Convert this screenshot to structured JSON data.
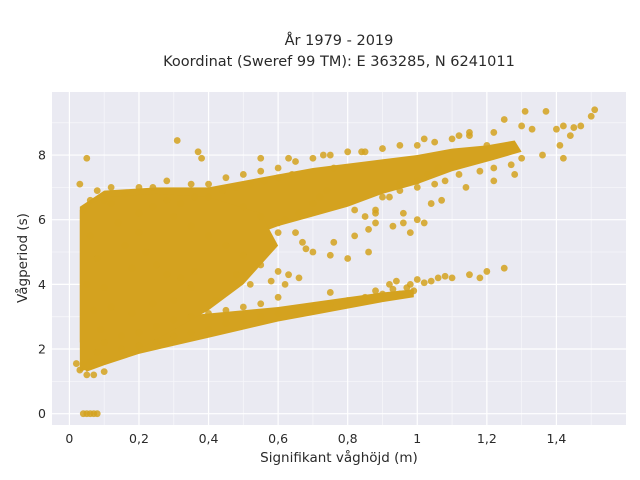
{
  "chart_data": {
    "type": "scatter",
    "title": "År 1979 - 2019",
    "subtitle": "Koordinat (Sweref 99 TM): E 363285, N 6241011",
    "xlabel": "Signifikant våghöjd (m)",
    "ylabel": "Vågperiod (s)",
    "xlim": [
      -0.05,
      1.6
    ],
    "ylim": [
      -0.35,
      9.95
    ],
    "x_ticks": [
      "0",
      "0,2",
      "0,4",
      "0,6",
      "0,8",
      "1",
      "1,2",
      "1,4"
    ],
    "x_tick_values": [
      0,
      0.2,
      0.4,
      0.6,
      0.8,
      1.0,
      1.2,
      1.4
    ],
    "y_ticks": [
      "0",
      "2",
      "4",
      "6",
      "8"
    ],
    "y_tick_values": [
      0,
      2,
      4,
      6,
      8
    ],
    "grid": true,
    "plot_background": "#eaeaf2",
    "marker_color": "#d4a21f",
    "series": [
      {
        "points": [
          [
            0.04,
            0.0
          ],
          [
            0.05,
            0.0
          ],
          [
            0.06,
            0.0
          ],
          [
            0.07,
            0.0
          ],
          [
            0.08,
            0.0
          ],
          [
            0.02,
            1.55
          ],
          [
            0.03,
            1.35
          ],
          [
            0.05,
            1.2
          ],
          [
            0.07,
            1.2
          ],
          [
            0.1,
            1.3
          ],
          [
            0.05,
            7.9
          ],
          [
            0.03,
            7.1
          ],
          [
            0.06,
            6.6
          ],
          [
            0.08,
            6.9
          ],
          [
            0.1,
            6.6
          ],
          [
            0.12,
            7.0
          ],
          [
            0.16,
            6.8
          ],
          [
            0.2,
            7.0
          ],
          [
            0.24,
            7.0
          ],
          [
            0.28,
            7.2
          ],
          [
            0.31,
            8.45
          ],
          [
            0.35,
            7.1
          ],
          [
            0.4,
            7.1
          ],
          [
            0.45,
            7.3
          ],
          [
            0.5,
            7.4
          ],
          [
            0.55,
            7.5
          ],
          [
            0.6,
            7.6
          ],
          [
            0.65,
            7.8
          ],
          [
            0.7,
            7.9
          ],
          [
            0.75,
            8.0
          ],
          [
            0.8,
            8.1
          ],
          [
            0.85,
            8.1
          ],
          [
            0.9,
            8.2
          ],
          [
            0.95,
            8.3
          ],
          [
            1.0,
            8.3
          ],
          [
            1.05,
            8.4
          ],
          [
            1.1,
            8.5
          ],
          [
            1.15,
            8.6
          ],
          [
            0.73,
            8.0
          ],
          [
            0.76,
            7.6
          ],
          [
            0.63,
            7.9
          ],
          [
            0.55,
            7.9
          ],
          [
            0.37,
            8.1
          ],
          [
            0.38,
            7.9
          ],
          [
            0.84,
            8.1
          ],
          [
            1.02,
            8.5
          ],
          [
            1.12,
            8.6
          ],
          [
            1.15,
            8.7
          ],
          [
            1.22,
            8.7
          ],
          [
            1.25,
            9.1
          ],
          [
            1.3,
            8.9
          ],
          [
            1.33,
            8.8
          ],
          [
            1.4,
            8.8
          ],
          [
            1.42,
            8.9
          ],
          [
            1.44,
            8.6
          ],
          [
            1.45,
            8.85
          ],
          [
            1.47,
            8.9
          ],
          [
            1.5,
            9.2
          ],
          [
            1.51,
            9.4
          ],
          [
            1.31,
            9.35
          ],
          [
            1.37,
            9.35
          ],
          [
            1.41,
            8.3
          ],
          [
            1.36,
            8.0
          ],
          [
            1.42,
            7.9
          ],
          [
            1.2,
            8.3
          ],
          [
            1.25,
            8.1
          ],
          [
            1.3,
            7.9
          ],
          [
            1.27,
            7.7
          ],
          [
            1.22,
            7.6
          ],
          [
            1.18,
            7.5
          ],
          [
            1.12,
            7.4
          ],
          [
            1.08,
            7.2
          ],
          [
            1.05,
            7.1
          ],
          [
            1.0,
            7.0
          ],
          [
            0.95,
            7.1
          ],
          [
            0.92,
            6.7
          ],
          [
            0.88,
            6.3
          ],
          [
            0.85,
            6.1
          ],
          [
            0.96,
            6.2
          ],
          [
            0.98,
            5.6
          ],
          [
            1.02,
            5.9
          ],
          [
            1.07,
            6.6
          ],
          [
            1.14,
            7.0
          ],
          [
            1.22,
            7.2
          ],
          [
            1.28,
            7.4
          ],
          [
            0.5,
            6.4
          ],
          [
            0.55,
            6.1
          ],
          [
            0.6,
            5.9
          ],
          [
            0.65,
            5.6
          ],
          [
            0.67,
            5.3
          ],
          [
            0.68,
            5.1
          ],
          [
            0.7,
            5.0
          ],
          [
            0.75,
            4.9
          ],
          [
            0.8,
            4.8
          ],
          [
            0.86,
            5.0
          ],
          [
            0.76,
            5.3
          ],
          [
            0.82,
            5.5
          ],
          [
            0.88,
            5.9
          ],
          [
            0.82,
            6.3
          ],
          [
            0.3,
            6.1
          ],
          [
            0.35,
            5.8
          ],
          [
            0.4,
            5.5
          ],
          [
            0.45,
            5.2
          ],
          [
            0.5,
            4.9
          ],
          [
            0.55,
            4.6
          ],
          [
            0.6,
            4.4
          ],
          [
            0.48,
            4.3
          ],
          [
            0.52,
            4.0
          ],
          [
            0.58,
            4.1
          ],
          [
            0.62,
            4.0
          ],
          [
            0.66,
            4.2
          ],
          [
            0.63,
            4.3
          ],
          [
            0.2,
            5.6
          ],
          [
            0.22,
            5.0
          ],
          [
            0.25,
            4.6
          ],
          [
            0.28,
            4.3
          ],
          [
            0.32,
            4.2
          ],
          [
            0.36,
            4.4
          ],
          [
            0.04,
            6.3
          ],
          [
            0.06,
            5.5
          ],
          [
            0.08,
            4.8
          ],
          [
            0.05,
            4.0
          ],
          [
            0.07,
            3.2
          ],
          [
            0.09,
            2.6
          ],
          [
            0.12,
            6.5
          ],
          [
            0.14,
            5.9
          ],
          [
            0.16,
            5.2
          ],
          [
            0.18,
            4.5
          ],
          [
            0.1,
            3.9
          ],
          [
            0.12,
            3.3
          ],
          [
            0.15,
            2.0
          ],
          [
            0.2,
            2.1
          ],
          [
            0.25,
            2.2
          ],
          [
            0.3,
            2.4
          ],
          [
            0.35,
            2.5
          ],
          [
            0.4,
            2.6
          ],
          [
            0.45,
            2.8
          ],
          [
            0.5,
            2.9
          ],
          [
            0.55,
            3.0
          ],
          [
            0.6,
            3.1
          ],
          [
            0.65,
            3.2
          ],
          [
            0.7,
            3.3
          ],
          [
            0.75,
            3.4
          ],
          [
            0.8,
            3.5
          ],
          [
            0.85,
            3.6
          ],
          [
            0.9,
            3.7
          ],
          [
            0.95,
            3.7
          ],
          [
            0.99,
            3.8
          ],
          [
            0.88,
            3.8
          ],
          [
            0.75,
            3.75
          ],
          [
            0.98,
            4.0
          ],
          [
            1.0,
            4.15
          ],
          [
            1.02,
            4.05
          ],
          [
            1.04,
            4.1
          ],
          [
            1.06,
            4.2
          ],
          [
            1.08,
            4.25
          ],
          [
            1.1,
            4.2
          ],
          [
            1.15,
            4.3
          ],
          [
            1.2,
            4.4
          ],
          [
            1.25,
            4.5
          ],
          [
            1.18,
            4.2
          ],
          [
            0.6,
            3.6
          ],
          [
            0.55,
            3.4
          ],
          [
            0.5,
            3.3
          ],
          [
            0.45,
            3.2
          ],
          [
            0.4,
            3.1
          ],
          [
            0.35,
            3.0
          ],
          [
            0.3,
            2.9
          ],
          [
            0.25,
            2.7
          ],
          [
            0.2,
            2.5
          ],
          [
            0.15,
            2.4
          ],
          [
            0.1,
            2.2
          ],
          [
            0.08,
            1.9
          ],
          [
            0.06,
            1.6
          ],
          [
            0.04,
            1.5
          ],
          [
            0.3,
            3.5
          ],
          [
            0.35,
            3.9
          ],
          [
            0.42,
            3.5
          ],
          [
            0.24,
            3.4
          ],
          [
            0.18,
            3.1
          ],
          [
            0.6,
            5.6
          ],
          [
            0.62,
            6.0
          ],
          [
            0.66,
            6.2
          ],
          [
            0.7,
            6.5
          ],
          [
            0.72,
            6.7
          ],
          [
            0.74,
            6.9
          ],
          [
            0.9,
            6.7
          ],
          [
            0.95,
            6.9
          ],
          [
            1.0,
            7.2
          ],
          [
            1.03,
            7.4
          ],
          [
            1.06,
            7.6
          ],
          [
            1.1,
            7.8
          ],
          [
            0.2,
            6.2
          ],
          [
            0.24,
            6.4
          ],
          [
            0.28,
            6.6
          ],
          [
            0.32,
            6.5
          ],
          [
            0.36,
            6.7
          ],
          [
            0.4,
            6.7
          ],
          [
            0.44,
            6.9
          ],
          [
            0.48,
            7.0
          ],
          [
            0.52,
            7.1
          ],
          [
            0.56,
            7.2
          ],
          [
            0.6,
            7.3
          ],
          [
            0.64,
            7.4
          ],
          [
            0.92,
            4.0
          ],
          [
            0.94,
            4.1
          ],
          [
            0.97,
            3.9
          ],
          [
            0.93,
            3.85
          ],
          [
            1.0,
            6.0
          ],
          [
            0.96,
            5.9
          ],
          [
            1.04,
            6.5
          ],
          [
            0.88,
            6.2
          ],
          [
            0.93,
            5.8
          ],
          [
            0.86,
            5.7
          ]
        ]
      }
    ]
  }
}
